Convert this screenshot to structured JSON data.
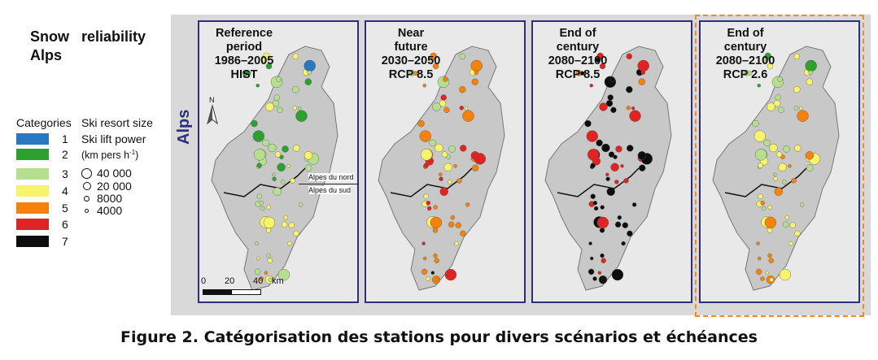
{
  "title": {
    "line1_a": "Snow",
    "line1_b": "reliability",
    "line2": "Alps"
  },
  "side_label": "Alps",
  "legend": {
    "categories_title": "Categories",
    "size_title_1": "Ski resort size",
    "size_title_2": "Ski lift power",
    "size_unit": "(km pers h",
    "size_unit_sup": "-1",
    "size_unit_end": ")",
    "categories": [
      {
        "label": "1",
        "color": "#2a78c2"
      },
      {
        "label": "2",
        "color": "#2ea02f"
      },
      {
        "label": "3",
        "color": "#b5df8f"
      },
      {
        "label": "4",
        "color": "#f7f36a"
      },
      {
        "label": "5",
        "color": "#f5820c"
      },
      {
        "label": "6",
        "color": "#e02323"
      },
      {
        "label": "7",
        "color": "#0d0d0d"
      }
    ],
    "sizes": [
      {
        "label": "40 000",
        "value": 40000
      },
      {
        "label": "20 000",
        "value": 20000
      },
      {
        "label": "8000",
        "value": 8000
      },
      {
        "label": "4000",
        "value": 4000
      }
    ]
  },
  "panels": [
    {
      "lines": [
        "Reference",
        "period",
        "1986–2005",
        "HIST"
      ]
    },
    {
      "lines": [
        "Near",
        "future",
        "2030–2050",
        "RCP 8.5"
      ]
    },
    {
      "lines": [
        "End of",
        "century",
        "2080–2100",
        "RCP 8.5"
      ]
    },
    {
      "lines": [
        "End of",
        "century",
        "2080–2100",
        "RCP 2.6"
      ]
    }
  ],
  "map_labels": {
    "north": "Alpes du nord",
    "south": "Alpes du sud",
    "north_arrow": "N"
  },
  "scale_bar": {
    "ticks": [
      "0",
      "20",
      "40"
    ],
    "unit": "km"
  },
  "caption": "Figure 2. Catégorisation des stations pour divers scénarios et échéances",
  "colors": {
    "panel_border": "#2e2e7a",
    "highlight_border": "#f08a24"
  }
}
